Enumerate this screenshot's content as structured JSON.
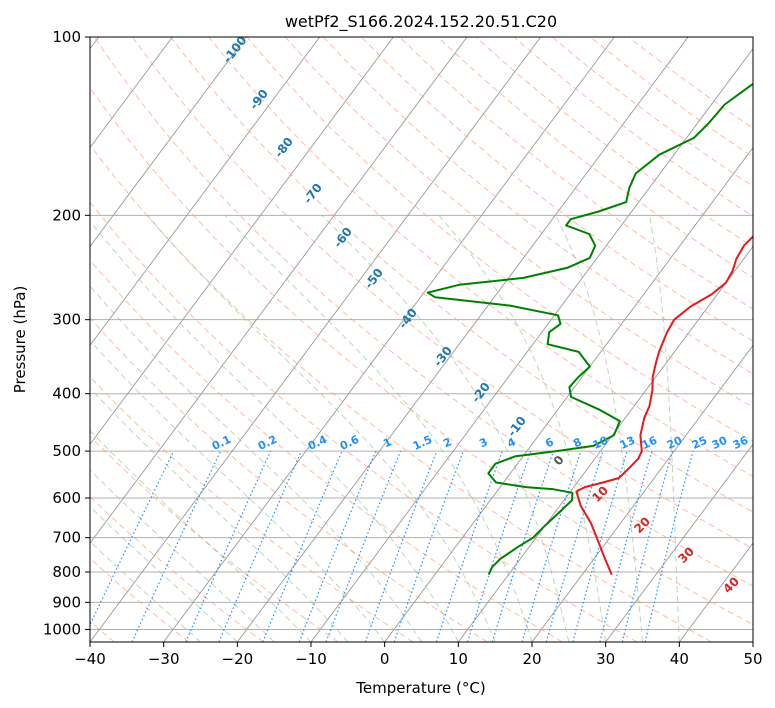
{
  "chart_data": {
    "type": "line",
    "title": "wetPf2_S166.2024.152.20.51.C20",
    "xlabel": "Temperature (°C)",
    "ylabel": "Pressure (hPa)",
    "xlim": [
      -40,
      50
    ],
    "ylim": [
      1050,
      100
    ],
    "y_scale": "log",
    "grid": true,
    "x_ticks": [
      -40,
      -30,
      -20,
      -10,
      0,
      10,
      20,
      30,
      40,
      50
    ],
    "y_ticks": [
      100,
      200,
      300,
      400,
      500,
      600,
      700,
      800,
      900,
      1000
    ],
    "colors": {
      "temperature": "#e41a1c",
      "dewpoint": "#008000",
      "isotherm": "#999999",
      "dry_adiabat": "#ffa07a",
      "moist_adiabat": "#8fbc8f",
      "mixing_ratio": "#1e90ff",
      "isotherm_label": "#1f77b4",
      "dry_label": "#d62728"
    },
    "series": [
      {
        "key": "temperature",
        "points": [
          [
            24.0,
            808
          ],
          [
            21.5,
            760
          ],
          [
            18.8,
            710
          ],
          [
            16.0,
            662
          ],
          [
            12.8,
            618
          ],
          [
            10.8,
            585
          ],
          [
            11.5,
            575
          ],
          [
            13.5,
            565
          ],
          [
            15.2,
            555
          ],
          [
            15.5,
            540
          ],
          [
            15.9,
            515
          ],
          [
            15.6,
            500
          ],
          [
            13.8,
            470
          ],
          [
            12.6,
            440
          ],
          [
            12.1,
            420
          ],
          [
            10.9,
            395
          ],
          [
            9.6,
            375
          ],
          [
            8.6,
            355
          ],
          [
            7.9,
            340
          ],
          [
            7.0,
            315
          ],
          [
            6.7,
            300
          ],
          [
            7.6,
            285
          ],
          [
            9.2,
            272
          ],
          [
            10.0,
            260
          ],
          [
            9.7,
            248
          ],
          [
            9.0,
            237
          ],
          [
            8.7,
            225
          ],
          [
            9.3,
            210
          ],
          [
            9.5,
            195
          ],
          [
            9.5,
            180
          ],
          [
            8.6,
            168
          ],
          [
            7.6,
            155
          ],
          [
            7.6,
            145
          ],
          [
            9.0,
            138
          ],
          [
            10.6,
            130
          ],
          [
            11.3,
            122
          ],
          [
            11.3,
            115
          ],
          [
            10.9,
            108
          ],
          [
            10.6,
            100
          ]
        ]
      },
      {
        "key": "dewpoint",
        "points": [
          [
            7.3,
            808
          ],
          [
            7.0,
            785
          ],
          [
            7.3,
            760
          ],
          [
            8.5,
            725
          ],
          [
            9.6,
            700
          ],
          [
            10.0,
            668
          ],
          [
            10.5,
            640
          ],
          [
            11.1,
            605
          ],
          [
            10.4,
            588
          ],
          [
            7.5,
            580
          ],
          [
            3.5,
            575
          ],
          [
            -1.0,
            565
          ],
          [
            -3.0,
            545
          ],
          [
            -3.0,
            525
          ],
          [
            -1.0,
            510
          ],
          [
            4.0,
            500
          ],
          [
            8.5,
            490
          ],
          [
            10.2,
            470
          ],
          [
            9.6,
            445
          ],
          [
            5.5,
            425
          ],
          [
            0.5,
            405
          ],
          [
            -0.7,
            390
          ],
          [
            -0.5,
            375
          ],
          [
            0.0,
            360
          ],
          [
            -3.0,
            340
          ],
          [
            -8.0,
            330
          ],
          [
            -9.0,
            315
          ],
          [
            -8.3,
            305
          ],
          [
            -9.5,
            295
          ],
          [
            -17.0,
            284
          ],
          [
            -28.0,
            275
          ],
          [
            -29.5,
            270
          ],
          [
            -26.0,
            262
          ],
          [
            -18.0,
            255
          ],
          [
            -13.0,
            245
          ],
          [
            -11.0,
            236
          ],
          [
            -11.5,
            225
          ],
          [
            -13.5,
            215
          ],
          [
            -17.5,
            208
          ],
          [
            -17.5,
            203
          ],
          [
            -14.5,
            197
          ],
          [
            -11.7,
            190
          ],
          [
            -12.7,
            180
          ],
          [
            -13.3,
            170
          ],
          [
            -12.0,
            158
          ],
          [
            -9.0,
            148
          ],
          [
            -8.5,
            140
          ],
          [
            -8.2,
            130
          ],
          [
            -7.0,
            123
          ],
          [
            -5.5,
            115
          ],
          [
            -3.0,
            107
          ],
          [
            -1.0,
            100
          ]
        ]
      }
    ],
    "background_labels": {
      "isotherms": [
        "-100",
        "-90",
        "-80",
        "-70",
        "-60",
        "-50",
        "-40",
        "-30",
        "-20",
        "-10",
        "0"
      ],
      "dry_adiabats": [
        "10",
        "20",
        "30",
        "40"
      ],
      "mixing_ratios": [
        "0.1",
        "0.2",
        "0.4",
        "0.6",
        "1",
        "1.5",
        "2",
        "3",
        "4",
        "6",
        "8",
        "10",
        "13",
        "16",
        "20",
        "25",
        "30",
        "36"
      ]
    }
  }
}
